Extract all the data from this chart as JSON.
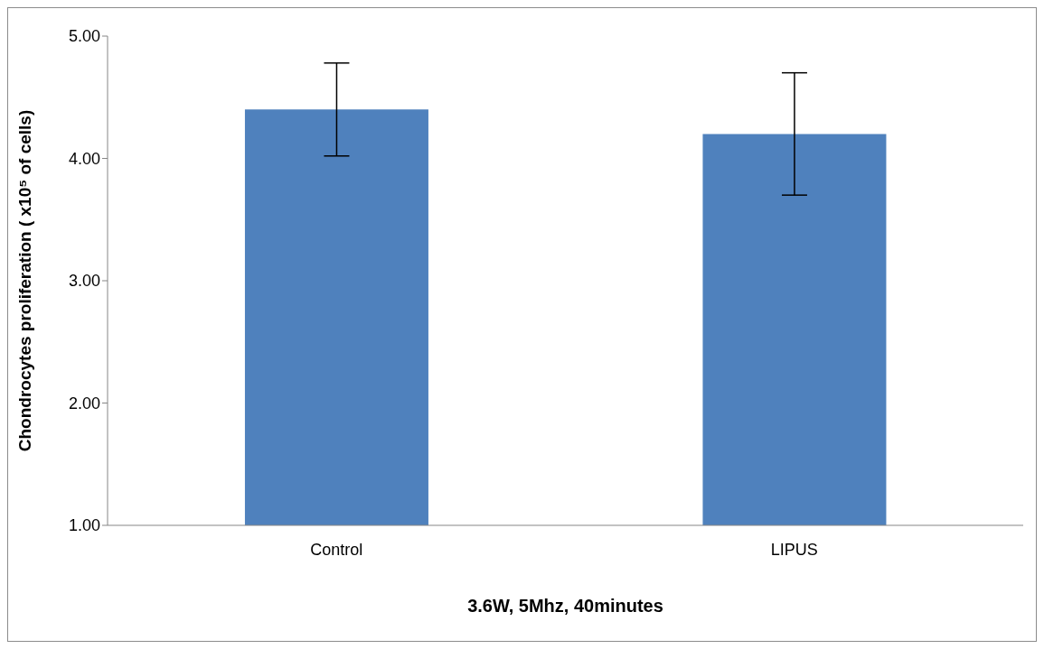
{
  "chart_data": {
    "type": "bar",
    "xlabel": "3.6W, 5Mhz, 40minutes",
    "ylabel": "Chondrocytes proliferation ( x10⁵ of cells)",
    "categories": [
      "Control",
      "LIPUS"
    ],
    "values": [
      4.4,
      4.2
    ],
    "errors": [
      0.38,
      0.5
    ],
    "color": "#4f81bd",
    "ylim": [
      1,
      5
    ],
    "yticks": [
      {
        "value": 1,
        "label": "1.00"
      },
      {
        "value": 2,
        "label": "2.00"
      },
      {
        "value": 3,
        "label": "3.00"
      },
      {
        "value": 4,
        "label": "4.00"
      },
      {
        "value": 5,
        "label": "5.00"
      }
    ],
    "grid": false,
    "legend": false
  }
}
